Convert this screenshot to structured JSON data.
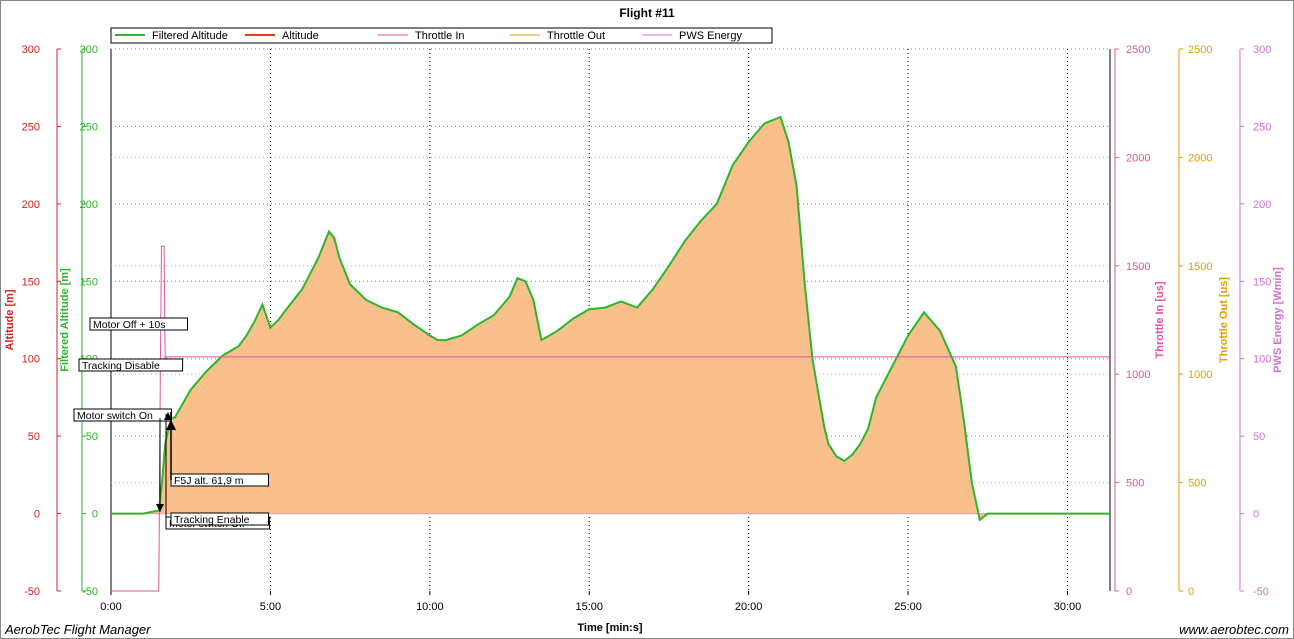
{
  "chart_data": {
    "type": "area",
    "title": "Flight #11",
    "xlabel": "Time [min:s]",
    "xlim_seconds": [
      0,
      1880
    ],
    "x_ticks": [
      "0:00",
      "5:00",
      "10:00",
      "15:00",
      "20:00",
      "25:00",
      "30:00"
    ],
    "x_tick_seconds": [
      0,
      300,
      600,
      900,
      1200,
      1500,
      1800
    ],
    "y_axes": [
      {
        "label": "Altitude [m]",
        "color": "#d62020",
        "range": [
          -50,
          300
        ],
        "ticks": [
          "-50",
          "0",
          "50",
          "100",
          "150",
          "200",
          "250",
          "300"
        ]
      },
      {
        "label": "Filtered Altitude [m]",
        "color": "#2db52d",
        "range": [
          -50,
          300
        ],
        "ticks": [
          "-50",
          "0",
          "50",
          "100",
          "150",
          "200",
          "250",
          "300"
        ]
      },
      {
        "label": "Throttle In [us]",
        "color": "#e0559a",
        "range": [
          0,
          2500
        ],
        "ticks": [
          "0",
          "500",
          "1000",
          "1500",
          "2000",
          "2500"
        ]
      },
      {
        "label": "Throttle Out [us]",
        "color": "#e0a000",
        "range": [
          0,
          2500
        ],
        "ticks": [
          "0",
          "500",
          "1000",
          "1500",
          "2000",
          "2500"
        ]
      },
      {
        "label": "PWS Energy [Wmin]",
        "color": "#d070d0",
        "range": [
          -50,
          300
        ],
        "ticks": [
          "-50",
          "0",
          "50",
          "100",
          "150",
          "200",
          "250",
          "300"
        ]
      }
    ],
    "legend": {
      "placement": "top",
      "items": [
        {
          "name": "Filtered Altitude",
          "color": "#2db52d"
        },
        {
          "name": "Altitude",
          "color": "#e04010"
        },
        {
          "name": "Throttle In",
          "color": "#e0559a"
        },
        {
          "name": "Throttle Out",
          "color": "#e0a000"
        },
        {
          "name": "PWS Energy",
          "color": "#d070d0"
        }
      ]
    },
    "series": [
      {
        "name": "Filtered Altitude",
        "x_seconds": [
          0,
          60,
          90,
          96,
          102,
          108,
          114,
          120,
          150,
          180,
          210,
          240,
          255,
          270,
          285,
          300,
          315,
          330,
          360,
          390,
          410,
          420,
          430,
          450,
          480,
          510,
          540,
          570,
          600,
          615,
          630,
          660,
          690,
          720,
          750,
          765,
          780,
          795,
          810,
          825,
          840,
          870,
          900,
          930,
          960,
          990,
          1020,
          1050,
          1080,
          1110,
          1140,
          1170,
          1200,
          1230,
          1260,
          1275,
          1290,
          1305,
          1320,
          1335,
          1343,
          1350,
          1365,
          1380,
          1395,
          1410,
          1425,
          1440,
          1470,
          1500,
          1530,
          1560,
          1590,
          1605,
          1620,
          1635,
          1650,
          1665,
          1680,
          1695,
          1710,
          1740,
          1770,
          1800,
          1830,
          1860,
          1880
        ],
        "y": [
          0,
          0,
          2,
          20,
          45,
          55,
          62,
          62,
          80,
          92,
          102,
          108,
          115,
          124,
          135,
          120,
          125,
          132,
          145,
          165,
          182,
          178,
          165,
          148,
          138,
          133,
          130,
          122,
          115,
          112,
          112,
          115,
          122,
          128,
          140,
          152,
          150,
          138,
          112,
          115,
          118,
          126,
          132,
          133,
          137,
          133,
          145,
          160,
          176,
          189,
          200,
          225,
          240,
          252,
          256,
          240,
          212,
          150,
          100,
          70,
          55,
          45,
          37,
          34,
          38,
          45,
          55,
          75,
          95,
          115,
          130,
          118,
          95,
          60,
          20,
          -4,
          0,
          0,
          0,
          0,
          0,
          0,
          0,
          0,
          0,
          0,
          0
        ]
      },
      {
        "name": "Throttle In",
        "x_seconds": [
          0,
          30,
          60,
          90,
          93,
          95,
          100,
          102,
          104,
          110,
          1880
        ],
        "y": [
          0,
          0,
          0,
          0,
          1050,
          1590,
          1590,
          1050,
          1080,
          1080,
          1080
        ]
      }
    ],
    "annotations": [
      "Motor Off + 10s",
      "Tracking Disable",
      "Motor switch On",
      "F5J alt. 61,9 m",
      "Motor switch Off",
      "Tracking Enable"
    ]
  },
  "footer": {
    "left": "AerobTec Flight Manager",
    "right": "www.aerobtec.com"
  }
}
